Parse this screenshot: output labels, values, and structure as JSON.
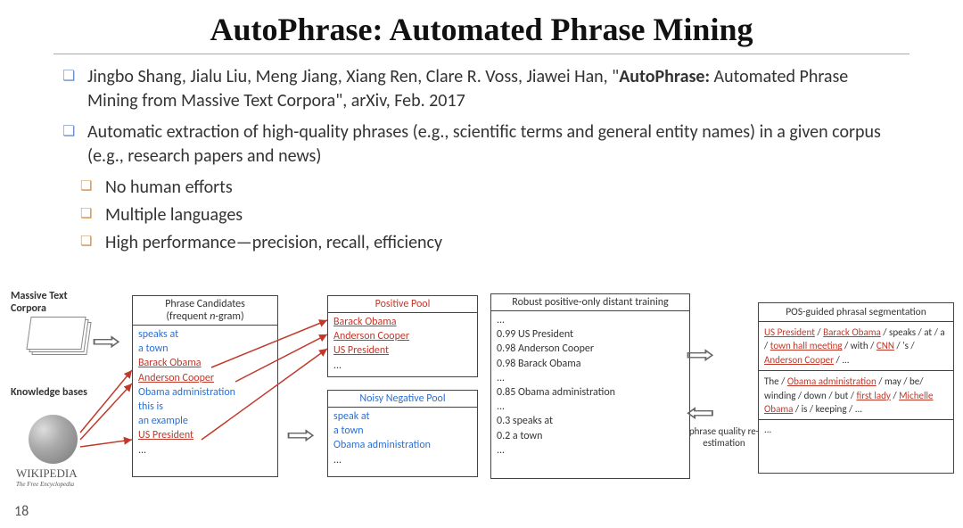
{
  "title": "AutoPhrase: Automated Phrase Mining",
  "bullet1_prefix": "Jingbo Shang, Jialu Liu, Meng Jiang, Xiang Ren, Clare R. Voss, Jiawei Han, \"",
  "bullet1_bold": "AutoPhrase:",
  "bullet1_suffix": " Automated Phrase Mining from Massive Text Corpora\", arXiv, Feb. 2017",
  "bullet2": "Automatic extraction of high-quality phrases (e.g., scientific terms and general entity names) in a given corpus (e.g., research papers and news)",
  "sub1": "No human efforts",
  "sub2": "Multiple languages",
  "sub3": "High performance—precision, recall, efficiency",
  "page_num": "18",
  "diagram": {
    "corpora_label": "Massive Text Corpora",
    "kb_label": "Knowledge bases",
    "wiki": "WIKIPEDIA",
    "wiki_sub": "The Free Encyclopedia",
    "candidates": {
      "header_l1": "Phrase Candidates",
      "header_l2": "(frequent ",
      "header_ital": "n",
      "header_l2b": "-gram)",
      "items": [
        {
          "t": "speaks at",
          "c": "blue"
        },
        {
          "t": "a town",
          "c": "blue"
        },
        {
          "t": "Barack Obama",
          "c": "red"
        },
        {
          "t": "Anderson Cooper",
          "c": "red"
        },
        {
          "t": "Obama administration",
          "c": "blue"
        },
        {
          "t": "this is",
          "c": "blue"
        },
        {
          "t": "an example",
          "c": "blue"
        },
        {
          "t": "US President",
          "c": "red"
        },
        {
          "t": "...",
          "c": ""
        }
      ]
    },
    "positive": {
      "header": "Positive Pool",
      "items": [
        {
          "t": "Barack Obama",
          "c": "red"
        },
        {
          "t": "Anderson Cooper",
          "c": "red"
        },
        {
          "t": "US President",
          "c": "red"
        },
        {
          "t": "...",
          "c": ""
        }
      ]
    },
    "negative": {
      "header": "Noisy Negative Pool",
      "items": [
        {
          "t": "speak at",
          "c": "blue"
        },
        {
          "t": "a town",
          "c": "blue"
        },
        {
          "t": "Obama administration",
          "c": "blue"
        },
        {
          "t": "...",
          "c": ""
        }
      ]
    },
    "robust": {
      "header": "Robust positive-only distant training",
      "items": [
        "...",
        "0.99 US President",
        "0.98 Anderson Cooper",
        "0.98 Barack Obama",
        "...",
        "0.85 Obama administration",
        "...",
        "0.3 speaks at",
        "0.2 a town",
        "..."
      ]
    },
    "pos": {
      "header": "POS-guided phrasal segmentation",
      "seg1": [
        {
          "t": "US President",
          "c": "red"
        },
        {
          "t": " / "
        },
        {
          "t": "Barack Obama",
          "c": "red"
        },
        {
          "t": " / speaks / at / a / "
        },
        {
          "t": "town  hall meeting",
          "c": "red"
        },
        {
          "t": " / with / "
        },
        {
          "t": "CNN",
          "c": "red"
        },
        {
          "t": " / 's / "
        },
        {
          "t": "Anderson Cooper",
          "c": "red"
        },
        {
          "t": " / ..."
        }
      ],
      "seg2": [
        {
          "t": "The / "
        },
        {
          "t": "Obama administration",
          "c": "red"
        },
        {
          "t": " / may / be/ winding / down / but / "
        },
        {
          "t": "first lady",
          "c": "red"
        },
        {
          "t": " / "
        },
        {
          "t": "Michelle Obama",
          "c": "red"
        },
        {
          "t": " / is / keeping /  ..."
        }
      ],
      "dots": "..."
    },
    "phrase_quality": "phrase quality re-estimation"
  }
}
